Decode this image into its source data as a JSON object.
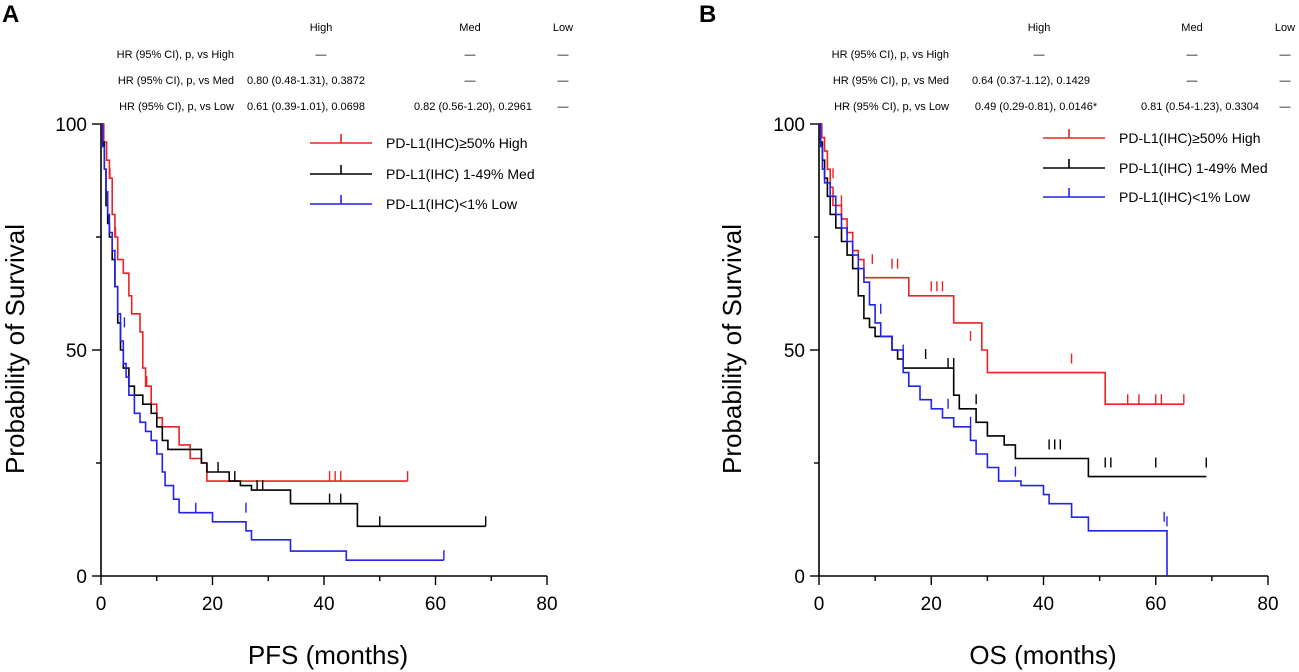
{
  "chart_data": [
    {
      "panel": "A",
      "type": "line",
      "xlabel": "PFS (months)",
      "ylabel": "Probability of Survival",
      "xlim": [
        0,
        80
      ],
      "ylim": [
        0,
        100
      ],
      "xticks": [
        0,
        20,
        40,
        60,
        80
      ],
      "yticks": [
        0,
        50,
        100
      ],
      "hr_table": {
        "columns": [
          {
            "label": "High",
            "color": "#ee2222"
          },
          {
            "label": "Med",
            "color": "#000000"
          },
          {
            "label": "Low",
            "color": "#2222ee"
          }
        ],
        "rows": [
          {
            "label": "HR (95% CI), p, vs High",
            "cells": [
              "—",
              "—",
              "—"
            ]
          },
          {
            "label": "HR (95% CI), p, vs Med",
            "cells": [
              "0.80 (0.48-1.31), 0.3872",
              "—",
              "—"
            ]
          },
          {
            "label": "HR (95% CI), p, vs Low",
            "cells": [
              "0.61 (0.39-1.01), 0.0698",
              "0.82 (0.56-1.20), 0.2961",
              "—"
            ]
          }
        ]
      },
      "series": [
        {
          "name": "PD-L1(IHC)≥50% High",
          "color": "#ee2222",
          "steps": [
            [
              0,
              100
            ],
            [
              0.5,
              96
            ],
            [
              1,
              92
            ],
            [
              1.5,
              88
            ],
            [
              2,
              80
            ],
            [
              2.5,
              75
            ],
            [
              3,
              70
            ],
            [
              4,
              67
            ],
            [
              5,
              62
            ],
            [
              5.5,
              58
            ],
            [
              7,
              54
            ],
            [
              7.5,
              46
            ],
            [
              8,
              42
            ],
            [
              9,
              38
            ],
            [
              10,
              35
            ],
            [
              11,
              33
            ],
            [
              14,
              29
            ],
            [
              16,
              26
            ],
            [
              18,
              25
            ],
            [
              19,
              21
            ],
            [
              55,
              21
            ]
          ],
          "censor": [
            [
              1.6,
              88
            ],
            [
              2.6,
              75
            ],
            [
              8.2,
              42
            ],
            [
              41,
              21
            ],
            [
              42,
              21
            ],
            [
              43,
              21
            ],
            [
              55,
              21
            ]
          ]
        },
        {
          "name": "PD-L1(IHC) 1-49% Med",
          "color": "#000000",
          "steps": [
            [
              0,
              100
            ],
            [
              0.3,
              96
            ],
            [
              0.6,
              90
            ],
            [
              0.9,
              82
            ],
            [
              1.2,
              78
            ],
            [
              1.5,
              75
            ],
            [
              2,
              70
            ],
            [
              2.5,
              64
            ],
            [
              3,
              56
            ],
            [
              3.5,
              50
            ],
            [
              4,
              46
            ],
            [
              5,
              42
            ],
            [
              6,
              40
            ],
            [
              7.5,
              38
            ],
            [
              9,
              36
            ],
            [
              10,
              33
            ],
            [
              11,
              30
            ],
            [
              12,
              28
            ],
            [
              18,
              25
            ],
            [
              19,
              23
            ],
            [
              23,
              21
            ],
            [
              25,
              20
            ],
            [
              27,
              19
            ],
            [
              34,
              16
            ],
            [
              46,
              11
            ],
            [
              69,
              11
            ]
          ],
          "censor": [
            [
              21,
              23
            ],
            [
              24,
              21
            ],
            [
              28,
              19
            ],
            [
              29,
              19
            ],
            [
              41,
              16
            ],
            [
              43,
              16
            ],
            [
              50,
              11
            ],
            [
              69,
              11
            ]
          ]
        },
        {
          "name": "PD-L1(IHC)<1% Low",
          "color": "#2222ee",
          "steps": [
            [
              0,
              100
            ],
            [
              0.3,
              95
            ],
            [
              0.6,
              90
            ],
            [
              0.9,
              85
            ],
            [
              1.2,
              80
            ],
            [
              1.5,
              76
            ],
            [
              2,
              72
            ],
            [
              2.5,
              64
            ],
            [
              3,
              58
            ],
            [
              3.5,
              52
            ],
            [
              4,
              47
            ],
            [
              4.5,
              44
            ],
            [
              5,
              40
            ],
            [
              6,
              36
            ],
            [
              7,
              34
            ],
            [
              8,
              32
            ],
            [
              9,
              30
            ],
            [
              10,
              27
            ],
            [
              11,
              23
            ],
            [
              11.5,
              20
            ],
            [
              13,
              17
            ],
            [
              14,
              14
            ],
            [
              19,
              14
            ],
            [
              20,
              12
            ],
            [
              26,
              10
            ],
            [
              27,
              8
            ],
            [
              34,
              5.5
            ],
            [
              44,
              3.5
            ],
            [
              61.5,
              3.5
            ]
          ],
          "censor": [
            [
              4.2,
              55
            ],
            [
              17,
              14
            ],
            [
              26,
              14
            ],
            [
              61.5,
              3.5
            ]
          ]
        }
      ]
    },
    {
      "panel": "B",
      "type": "line",
      "xlabel": "OS (months)",
      "ylabel": "Probability of Survival",
      "xlim": [
        0,
        80
      ],
      "ylim": [
        0,
        100
      ],
      "xticks": [
        0,
        20,
        40,
        60,
        80
      ],
      "yticks": [
        0,
        50,
        100
      ],
      "hr_table": {
        "columns": [
          {
            "label": "High",
            "color": "#ee2222"
          },
          {
            "label": "Med",
            "color": "#000000"
          },
          {
            "label": "Low",
            "color": "#2222ee"
          }
        ],
        "rows": [
          {
            "label": "HR (95% CI), p, vs High",
            "cells": [
              "—",
              "—",
              "—"
            ]
          },
          {
            "label": "HR (95% CI), p, vs Med",
            "cells": [
              "0.64 (0.37-1.12), 0.1429",
              "—",
              "—"
            ]
          },
          {
            "label": "HR (95% CI), p, vs Low",
            "cells": [
              "0.49 (0.29-0.81), 0.0146*",
              "0.81 (0.54-1.23), 0.3304",
              "—"
            ]
          }
        ]
      },
      "series": [
        {
          "name": "PD-L1(IHC)≥50% High",
          "color": "#ee2222",
          "steps": [
            [
              0,
              100
            ],
            [
              0.5,
              97
            ],
            [
              1,
              94
            ],
            [
              1.5,
              90
            ],
            [
              2,
              86
            ],
            [
              2.5,
              82
            ],
            [
              4,
              79
            ],
            [
              5,
              76
            ],
            [
              6,
              72
            ],
            [
              7,
              70
            ],
            [
              8,
              66
            ],
            [
              16,
              62
            ],
            [
              24,
              56
            ],
            [
              29,
              50
            ],
            [
              30,
              45
            ],
            [
              51,
              38
            ],
            [
              65,
              38
            ]
          ],
          "censor": [
            [
              2.5,
              88
            ],
            [
              4,
              82
            ],
            [
              9.5,
              69
            ],
            [
              13,
              68
            ],
            [
              14,
              68
            ],
            [
              20,
              63
            ],
            [
              21,
              63
            ],
            [
              22,
              63
            ],
            [
              27,
              52
            ],
            [
              45,
              47
            ],
            [
              51,
              38
            ],
            [
              55,
              38
            ],
            [
              57,
              38
            ],
            [
              60,
              38
            ],
            [
              61,
              38
            ],
            [
              65,
              38
            ]
          ]
        },
        {
          "name": "PD-L1(IHC) 1-49% Med",
          "color": "#000000",
          "steps": [
            [
              0,
              100
            ],
            [
              0.3,
              96
            ],
            [
              0.6,
              92
            ],
            [
              1,
              88
            ],
            [
              1.5,
              84
            ],
            [
              2,
              80
            ],
            [
              3,
              77
            ],
            [
              4,
              74
            ],
            [
              5,
              71
            ],
            [
              6,
              68
            ],
            [
              7,
              62
            ],
            [
              8,
              57
            ],
            [
              9,
              55
            ],
            [
              10,
              53
            ],
            [
              13,
              50
            ],
            [
              14,
              48
            ],
            [
              15,
              46
            ],
            [
              24,
              40
            ],
            [
              25,
              37
            ],
            [
              28,
              34
            ],
            [
              30,
              31
            ],
            [
              33,
              29
            ],
            [
              35,
              26
            ],
            [
              48,
              22
            ],
            [
              69,
              22
            ]
          ],
          "censor": [
            [
              19,
              48
            ],
            [
              23,
              46
            ],
            [
              24,
              46
            ],
            [
              28,
              38
            ],
            [
              41,
              28
            ],
            [
              42,
              28
            ],
            [
              43,
              28
            ],
            [
              51,
              24
            ],
            [
              52,
              24
            ],
            [
              60,
              24
            ],
            [
              69,
              24
            ]
          ]
        },
        {
          "name": "PD-L1(IHC)<1% Low",
          "color": "#2222ee",
          "steps": [
            [
              0,
              100
            ],
            [
              0.3,
              95
            ],
            [
              0.6,
              90
            ],
            [
              1,
              87
            ],
            [
              2,
              84
            ],
            [
              3,
              80
            ],
            [
              4,
              77
            ],
            [
              5,
              74
            ],
            [
              6,
              71
            ],
            [
              7,
              68
            ],
            [
              8,
              65
            ],
            [
              9,
              60
            ],
            [
              10,
              56
            ],
            [
              11,
              53
            ],
            [
              13,
              50
            ],
            [
              15,
              45
            ],
            [
              16,
              42
            ],
            [
              18,
              39
            ],
            [
              20,
              37
            ],
            [
              22,
              35
            ],
            [
              24,
              33
            ],
            [
              27,
              30
            ],
            [
              28,
              27
            ],
            [
              30,
              24
            ],
            [
              32,
              21
            ],
            [
              36,
              20
            ],
            [
              40,
              18
            ],
            [
              41,
              16
            ],
            [
              45,
              13
            ],
            [
              48,
              10
            ],
            [
              62,
              10
            ],
            [
              62,
              0
            ]
          ],
          "censor": [
            [
              11,
              58
            ],
            [
              15,
              49
            ],
            [
              23,
              37
            ],
            [
              27,
              33
            ],
            [
              35,
              22
            ],
            [
              61.5,
              12
            ],
            [
              62,
              11
            ]
          ]
        }
      ]
    }
  ]
}
